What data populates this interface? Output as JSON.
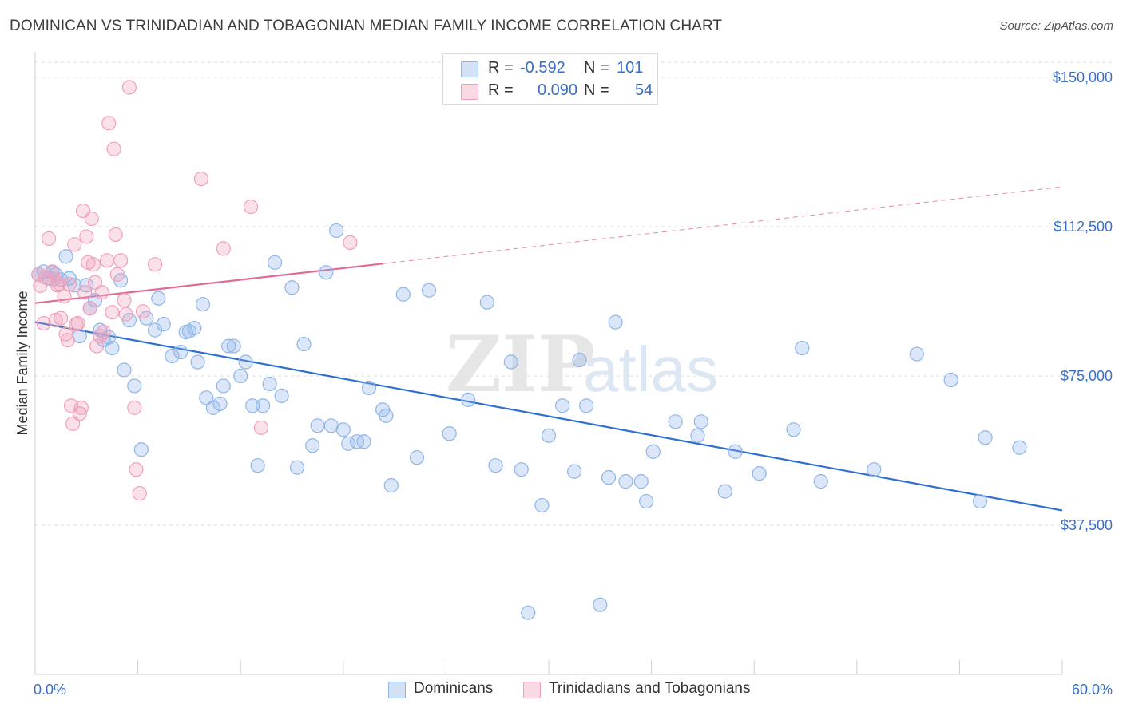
{
  "title": "DOMINICAN VS TRINIDADIAN AND TOBAGONIAN MEDIAN FAMILY INCOME CORRELATION CHART",
  "source": "Source: ZipAtlas.com",
  "watermark": {
    "zip": "ZIP",
    "atlas": "atlas"
  },
  "legend": {
    "rows": [
      {
        "r_label": "R =",
        "r_value": "-0.592",
        "n_label": "N =",
        "n_value": "101",
        "color": "#8fb5e8"
      },
      {
        "r_label": "R =",
        "r_value": "0.090",
        "n_label": "N =",
        "n_value": "54",
        "color": "#f0a0bc"
      }
    ]
  },
  "bottom_legend": [
    {
      "label": "Dominicans",
      "color": "#8fb5e8"
    },
    {
      "label": "Trinidadians and Tobagonians",
      "color": "#f0a0bc"
    }
  ],
  "chart_data": {
    "type": "scatter",
    "title": "DOMINICAN VS TRINIDADIAN AND TOBAGONIAN MEDIAN FAMILY INCOME CORRELATION CHART",
    "xlabel": "",
    "ylabel": "Median Family Income",
    "xlim": [
      0,
      60
    ],
    "ylim": [
      0,
      155000
    ],
    "x_tick_labels": [
      "0.0%",
      "60.0%"
    ],
    "y_ticks": [
      37500,
      75000,
      112500,
      150000
    ],
    "y_tick_labels": [
      "$37,500",
      "$75,000",
      "$112,500",
      "$150,000"
    ],
    "grid": "horizontal dashed",
    "legend_position": "top-center",
    "series": [
      {
        "name": "Dominicans",
        "color": "#8fb5e8",
        "line_color": "#2f6fd0",
        "trend": {
          "x": [
            0,
            60
          ],
          "y": [
            88500,
            41200
          ],
          "style": "solid"
        },
        "points": [
          [
            0.2,
            100500
          ],
          [
            0.5,
            101200
          ],
          [
            0.8,
            99500
          ],
          [
            1.0,
            101000
          ],
          [
            1.2,
            100500
          ],
          [
            1.5,
            99200
          ],
          [
            1.8,
            105000
          ],
          [
            2.3,
            97800
          ],
          [
            2.6,
            85000
          ],
          [
            2.0,
            99500
          ],
          [
            3.0,
            97800
          ],
          [
            3.2,
            92000
          ],
          [
            3.5,
            94000
          ],
          [
            3.8,
            86500
          ],
          [
            4.0,
            84000
          ],
          [
            4.3,
            84700
          ],
          [
            4.5,
            82000
          ],
          [
            5.0,
            99000
          ],
          [
            5.2,
            76500
          ],
          [
            5.5,
            89000
          ],
          [
            5.8,
            72500
          ],
          [
            6.2,
            56500
          ],
          [
            6.5,
            89500
          ],
          [
            7.0,
            86500
          ],
          [
            7.2,
            94500
          ],
          [
            7.5,
            88000
          ],
          [
            8.0,
            80000
          ],
          [
            8.5,
            81000
          ],
          [
            8.8,
            86000
          ],
          [
            9.0,
            86200
          ],
          [
            9.3,
            87000
          ],
          [
            9.5,
            78500
          ],
          [
            9.8,
            93000
          ],
          [
            10.0,
            69500
          ],
          [
            10.4,
            67000
          ],
          [
            10.8,
            68000
          ],
          [
            11.0,
            72500
          ],
          [
            11.3,
            82500
          ],
          [
            11.6,
            82500
          ],
          [
            12.0,
            75000
          ],
          [
            12.3,
            78500
          ],
          [
            12.7,
            67500
          ],
          [
            13.0,
            52500
          ],
          [
            13.3,
            67500
          ],
          [
            13.7,
            73000
          ],
          [
            14.0,
            103500
          ],
          [
            14.4,
            70000
          ],
          [
            15.0,
            97200
          ],
          [
            15.3,
            52000
          ],
          [
            15.7,
            83000
          ],
          [
            16.2,
            57500
          ],
          [
            16.5,
            62500
          ],
          [
            17.0,
            101000
          ],
          [
            17.3,
            62500
          ],
          [
            17.6,
            111500
          ],
          [
            18.0,
            61500
          ],
          [
            18.3,
            58000
          ],
          [
            18.8,
            58500
          ],
          [
            19.2,
            58500
          ],
          [
            19.5,
            72000
          ],
          [
            20.3,
            66500
          ],
          [
            20.8,
            47500
          ],
          [
            21.5,
            95500
          ],
          [
            22.3,
            54500
          ],
          [
            23.0,
            96500
          ],
          [
            24.2,
            60500
          ],
          [
            25.3,
            69000
          ],
          [
            26.4,
            93500
          ],
          [
            26.9,
            52500
          ],
          [
            27.8,
            78500
          ],
          [
            28.4,
            51500
          ],
          [
            28.8,
            15500
          ],
          [
            29.6,
            42500
          ],
          [
            30.0,
            60000
          ],
          [
            30.8,
            67500
          ],
          [
            31.5,
            51000
          ],
          [
            31.8,
            79000
          ],
          [
            32.2,
            67500
          ],
          [
            33.0,
            17500
          ],
          [
            33.5,
            49500
          ],
          [
            33.9,
            88500
          ],
          [
            34.5,
            48500
          ],
          [
            35.4,
            48500
          ],
          [
            35.7,
            43500
          ],
          [
            36.1,
            56000
          ],
          [
            37.4,
            63500
          ],
          [
            38.7,
            60000
          ],
          [
            38.9,
            63500
          ],
          [
            40.3,
            46000
          ],
          [
            40.9,
            56000
          ],
          [
            42.3,
            50500
          ],
          [
            44.3,
            61500
          ],
          [
            44.8,
            82000
          ],
          [
            45.9,
            48500
          ],
          [
            49.0,
            51500
          ],
          [
            51.5,
            80500
          ],
          [
            53.5,
            74000
          ],
          [
            55.2,
            43500
          ],
          [
            55.5,
            59500
          ],
          [
            57.5,
            57000
          ],
          [
            20.5,
            65000
          ]
        ]
      },
      {
        "name": "Trinidadians and Tobagonians",
        "color": "#f0a0bc",
        "line_color": "#e06a98",
        "trend": {
          "x": [
            0,
            20.3
          ],
          "y": [
            93300,
            103200
          ],
          "style": "solid",
          "extended": {
            "x": [
              20.3,
              60
            ],
            "y": [
              103200,
              122500
            ],
            "style": "dashed"
          }
        },
        "points": [
          [
            0.2,
            100500
          ],
          [
            0.3,
            97700
          ],
          [
            0.5,
            88200
          ],
          [
            0.6,
            99800
          ],
          [
            0.8,
            109500
          ],
          [
            1.0,
            101200
          ],
          [
            1.1,
            99300
          ],
          [
            1.3,
            97800
          ],
          [
            1.4,
            98200
          ],
          [
            1.5,
            89500
          ],
          [
            1.7,
            95000
          ],
          [
            1.8,
            85500
          ],
          [
            2.0,
            98000
          ],
          [
            1.9,
            84000
          ],
          [
            2.1,
            67500
          ],
          [
            2.2,
            63000
          ],
          [
            2.3,
            108000
          ],
          [
            2.5,
            88200
          ],
          [
            2.6,
            65500
          ],
          [
            2.7,
            67000
          ],
          [
            2.8,
            116500
          ],
          [
            2.9,
            96000
          ],
          [
            3.0,
            110000
          ],
          [
            3.1,
            103500
          ],
          [
            3.2,
            92000
          ],
          [
            3.3,
            114500
          ],
          [
            3.4,
            103000
          ],
          [
            3.5,
            98500
          ],
          [
            3.6,
            82500
          ],
          [
            3.8,
            85000
          ],
          [
            3.9,
            96000
          ],
          [
            4.0,
            86000
          ],
          [
            4.2,
            104000
          ],
          [
            4.3,
            138500
          ],
          [
            4.5,
            91000
          ],
          [
            4.6,
            132000
          ],
          [
            4.8,
            100500
          ],
          [
            5.0,
            104000
          ],
          [
            5.2,
            94000
          ],
          [
            5.5,
            147500
          ],
          [
            5.8,
            67000
          ],
          [
            5.9,
            51500
          ],
          [
            6.1,
            45500
          ],
          [
            6.3,
            91200
          ],
          [
            7.0,
            103000
          ],
          [
            9.7,
            124500
          ],
          [
            11.0,
            107000
          ],
          [
            12.6,
            117500
          ],
          [
            13.2,
            62000
          ],
          [
            18.4,
            108500
          ],
          [
            1.2,
            89000
          ],
          [
            2.4,
            88000
          ],
          [
            4.7,
            110500
          ],
          [
            5.3,
            90500
          ]
        ]
      }
    ]
  }
}
